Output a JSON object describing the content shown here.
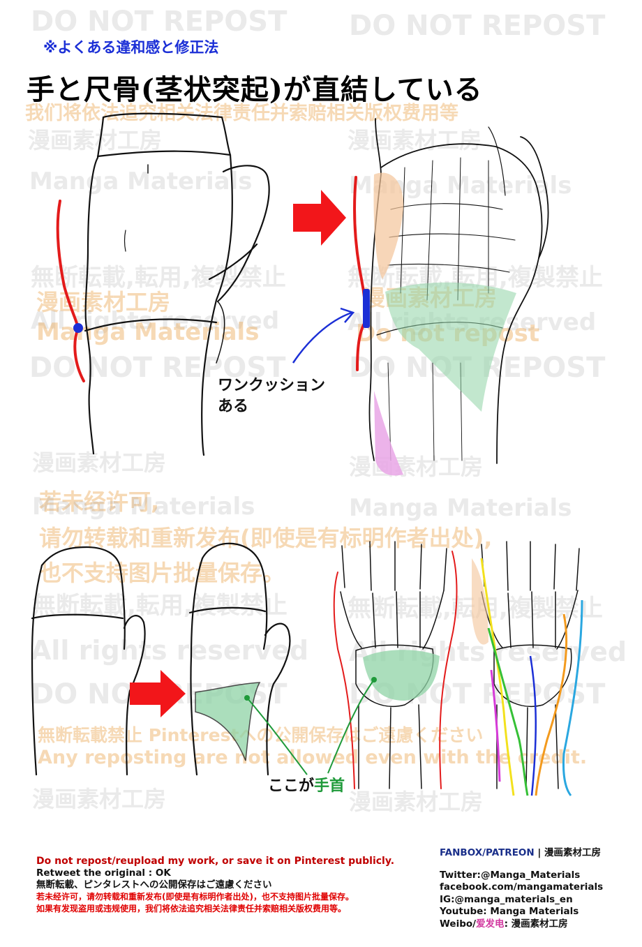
{
  "header": {
    "subheading": "※よくある違和感と修正法",
    "title": "手と尺骨(茎状突起)が直結している"
  },
  "annotations": {
    "cushion_line1": "ワンクッション",
    "cushion_line2": "ある",
    "wrist_label_prefix": "ここが",
    "wrist_label_highlight": "手首"
  },
  "watermarks": {
    "do_not_repost": "DO NOT REPOST",
    "cn_warning": "我们将依法追究相关法律责任并索赔相关版权费用等",
    "studio": "漫画素材工房",
    "manga_materials": "Manga Materials",
    "jp_no_repost": "無断転載,転用,複製禁止",
    "jp_no_repost_short": "無断転載禁止",
    "all_rights": "All rights reserved",
    "do_not_repost_lower": "Do not repost",
    "cn_line1": "若未经许可,",
    "cn_line2": "请勿转载和重新发布(即使是有标明作者出处),",
    "cn_line3": "也不支持图片批量保存。",
    "jp_pinterest": "無断転載禁止 Pinterestへの公開保存はご遠慮ください",
    "en_no_repost": "Any reposting are not allowed even with the credit."
  },
  "footer": {
    "left": {
      "line1": "Do not repost/reupload my work, or save it on Pinterest publicly.",
      "line2": "Retweet the original : OK",
      "line3": "無断転載、ピンタレストへの公開保存はご遠慮ください",
      "line4": "若未经许可，请勿转载和重新发布(即使是有标明作者出处)，也不支持图片批量保存。",
      "line5": "如果有发现盗用或违规使用，我们将依法追究相关法律责任并索赔相关版权费用等。"
    },
    "right": {
      "fanbox": "FANBOX/PATREON",
      "fanbox_sep": " | ",
      "fanbox_name": "漫画素材工房",
      "twitter": "Twitter:@Manga_Materials",
      "facebook": "facebook.com/mangamaterials",
      "ig": "IG:@manga_materials_en",
      "youtube": "Youtube: Manga Materials",
      "weibo_prefix": "Weibo/",
      "weibo_mid": "爱发电",
      "weibo_suffix": ": 漫画素材工房"
    }
  },
  "colors": {
    "accent_blue": "#1b2fd6",
    "red_line": "#e31b1b",
    "green_fill": "#8fd3a6",
    "orange_fill": "#f4c59a",
    "pink_fill": "#e9a6e6",
    "footer_red": "#c00000"
  }
}
